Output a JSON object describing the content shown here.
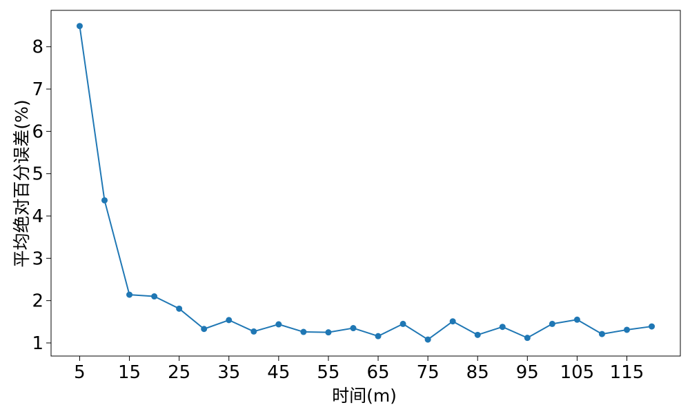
{
  "chart_data": {
    "type": "line",
    "title": "",
    "xlabel": "时间(m)",
    "ylabel": "平均绝对百分误差(%)",
    "x": [
      5,
      10,
      15,
      20,
      25,
      30,
      35,
      40,
      45,
      50,
      55,
      60,
      65,
      70,
      75,
      80,
      85,
      90,
      95,
      100,
      105,
      110,
      115,
      120
    ],
    "series": [
      {
        "name": "平均绝对百分误差",
        "color": "#1f77b4",
        "values": [
          8.49,
          4.37,
          2.14,
          2.1,
          1.81,
          1.33,
          1.54,
          1.27,
          1.44,
          1.26,
          1.25,
          1.35,
          1.16,
          1.45,
          1.08,
          1.51,
          1.19,
          1.38,
          1.12,
          1.45,
          1.55,
          1.21,
          1.31,
          1.39
        ]
      }
    ],
    "xticks": [
      5,
      15,
      25,
      35,
      45,
      55,
      65,
      75,
      85,
      95,
      105,
      115
    ],
    "xtick_labels": [
      "5",
      "15",
      "25",
      "35",
      "45",
      "55",
      "65",
      "75",
      "85",
      "95",
      "105",
      "115"
    ],
    "yticks": [
      1,
      2,
      3,
      4,
      5,
      6,
      7,
      8
    ],
    "ytick_labels": [
      "1",
      "2",
      "3",
      "4",
      "5",
      "6",
      "7",
      "8"
    ],
    "xlim": [
      -0.75,
      125.75
    ],
    "ylim": [
      0.69,
      8.86
    ],
    "grid": false,
    "legend": "none"
  }
}
